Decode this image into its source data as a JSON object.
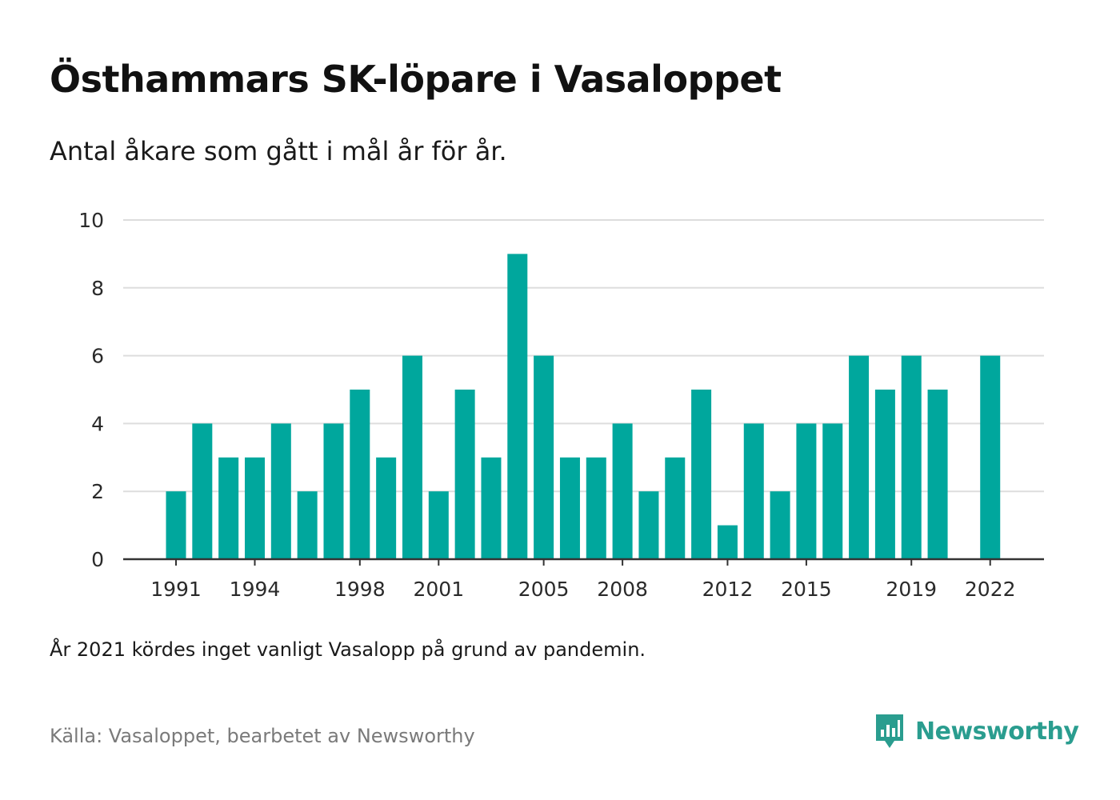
{
  "header": {
    "title": "Östhammars SK-löpare i Vasaloppet",
    "subtitle": "Antal åkare som gått i mål år för år."
  },
  "footer": {
    "note": "År 2021 kördes inget vanligt Vasalopp på grund av pandemin.",
    "source": "Källa: Vasaloppet, bearbetet av Newsworthy",
    "brand": "Newsworthy",
    "brand_icon": "newsworthy-logo-icon"
  },
  "colors": {
    "bar": "#00A79D",
    "grid": "#dddddd",
    "axis": "#333333",
    "brand": "#2a9d8f"
  },
  "chart_data": {
    "type": "bar",
    "title": "Östhammars SK-löpare i Vasaloppet",
    "subtitle": "Antal åkare som gått i mål år för år.",
    "xlabel": "",
    "ylabel": "",
    "categories": [
      1991,
      1992,
      1993,
      1994,
      1995,
      1996,
      1997,
      1998,
      1999,
      2000,
      2001,
      2002,
      2003,
      2004,
      2005,
      2006,
      2007,
      2008,
      2009,
      2010,
      2011,
      2012,
      2013,
      2014,
      2015,
      2016,
      2017,
      2018,
      2019,
      2020,
      2021,
      2022
    ],
    "values": [
      2,
      4,
      3,
      3,
      4,
      2,
      4,
      5,
      3,
      6,
      2,
      5,
      3,
      9,
      6,
      3,
      3,
      4,
      2,
      3,
      5,
      1,
      4,
      2,
      4,
      4,
      6,
      5,
      6,
      5,
      null,
      6
    ],
    "ylim": [
      0,
      10
    ],
    "yticks": [
      0,
      2,
      4,
      6,
      8,
      10
    ],
    "xticks": [
      1991,
      1994,
      1998,
      2001,
      2005,
      2008,
      2012,
      2015,
      2019,
      2022
    ],
    "grid": true,
    "legend": "none"
  }
}
